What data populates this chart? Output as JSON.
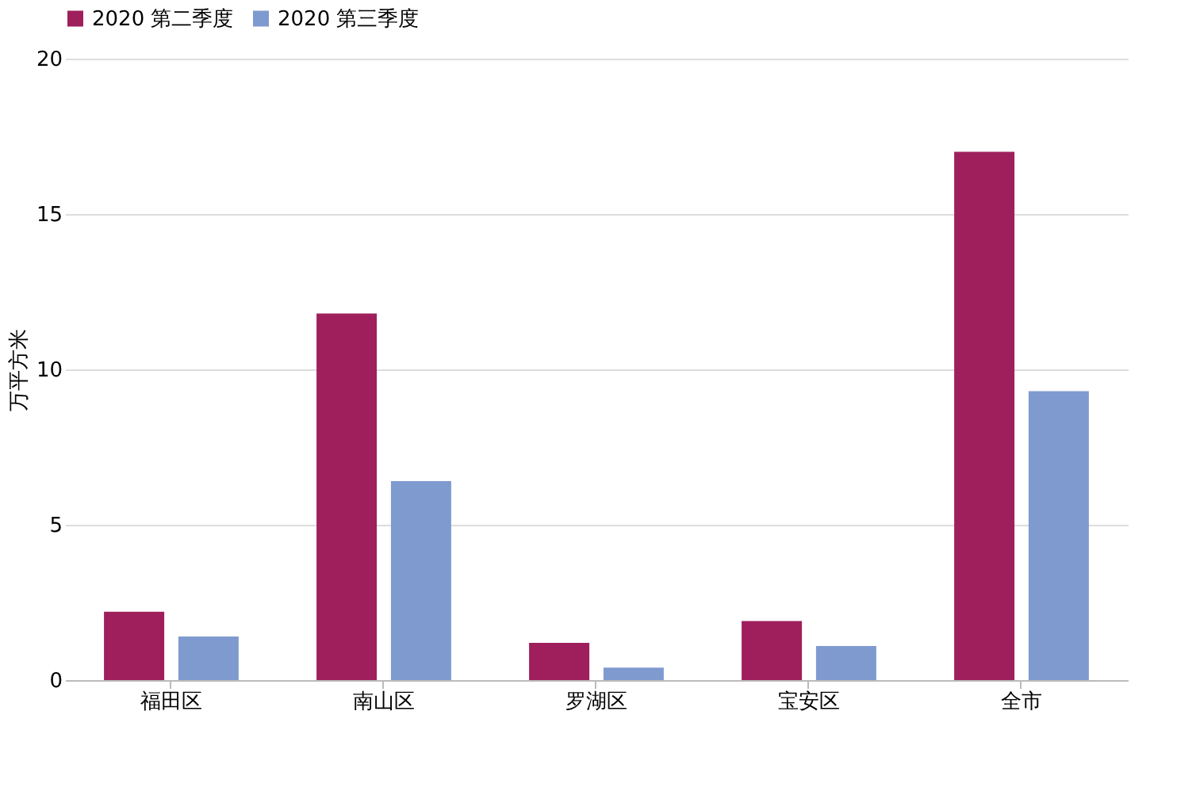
{
  "chart_data": {
    "type": "bar",
    "ylabel": "万平方米",
    "categories": [
      "福田区",
      "南山区",
      "罗湖区",
      "宝安区",
      "全市"
    ],
    "series": [
      {
        "name": "2020 第二季度",
        "color": "#9e1f5c",
        "values": [
          2.2,
          11.8,
          1.2,
          1.9,
          17.0
        ]
      },
      {
        "name": "2020 第三季度",
        "color": "#7f9acf",
        "values": [
          1.4,
          6.4,
          0.4,
          1.1,
          9.3
        ]
      }
    ],
    "ylim": [
      0,
      20
    ],
    "yticks": [
      0,
      5,
      10,
      15,
      20
    ],
    "grid": "y",
    "legend": "top"
  }
}
